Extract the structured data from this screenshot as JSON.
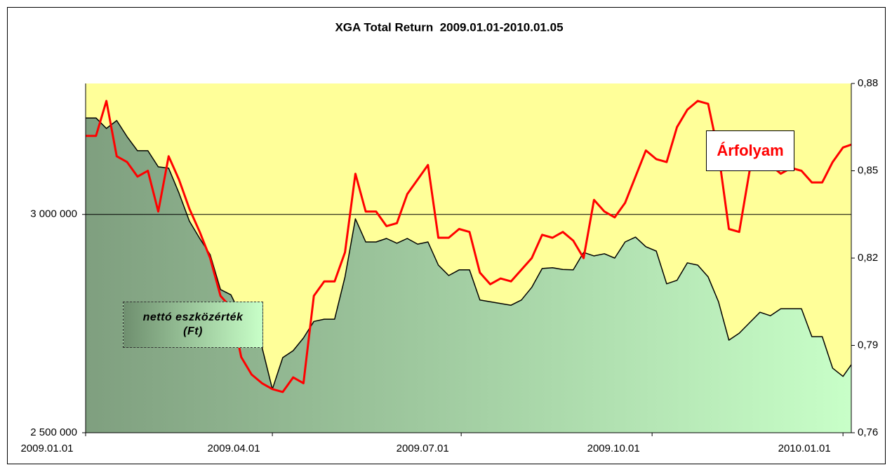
{
  "chart_data": {
    "type": "line",
    "title": "XGA Total Return  2009.01.01-2010.01.05",
    "x": [
      "2009.01.01",
      "2009.01.06",
      "2009.01.11",
      "2009.01.16",
      "2009.01.21",
      "2009.01.26",
      "2009.01.31",
      "2009.02.05",
      "2009.02.10",
      "2009.02.15",
      "2009.02.20",
      "2009.02.25",
      "2009.03.02",
      "2009.03.07",
      "2009.03.12",
      "2009.03.17",
      "2009.03.22",
      "2009.03.27",
      "2009.04.01",
      "2009.04.06",
      "2009.04.11",
      "2009.04.16",
      "2009.04.21",
      "2009.04.26",
      "2009.05.01",
      "2009.05.06",
      "2009.05.11",
      "2009.05.16",
      "2009.05.21",
      "2009.05.26",
      "2009.05.31",
      "2009.06.05",
      "2009.06.10",
      "2009.06.15",
      "2009.06.20",
      "2009.06.25",
      "2009.06.30",
      "2009.07.05",
      "2009.07.10",
      "2009.07.15",
      "2009.07.20",
      "2009.07.25",
      "2009.07.30",
      "2009.08.04",
      "2009.08.09",
      "2009.08.14",
      "2009.08.19",
      "2009.08.24",
      "2009.08.29",
      "2009.09.03",
      "2009.09.08",
      "2009.09.13",
      "2009.09.18",
      "2009.09.23",
      "2009.09.28",
      "2009.10.03",
      "2009.10.08",
      "2009.10.13",
      "2009.10.18",
      "2009.10.23",
      "2009.10.28",
      "2009.11.02",
      "2009.11.07",
      "2009.11.12",
      "2009.11.17",
      "2009.11.22",
      "2009.11.27",
      "2009.12.02",
      "2009.12.07",
      "2009.12.12",
      "2009.12.17",
      "2009.12.22",
      "2009.12.27",
      "2010.01.01",
      "2010.01.05"
    ],
    "xlim": [
      "2009.01.01",
      "2010.01.05"
    ],
    "xticks": [
      "2009.01.01",
      "2009.04.01",
      "2009.07.01",
      "2009.10.01",
      "2010.01.01"
    ],
    "ylim": [
      2500000,
      3300000
    ],
    "yticks": [
      {
        "value": 2500000,
        "label": "2 500 000"
      },
      {
        "value": 3000000,
        "label": "3 000 000"
      }
    ],
    "y2lim": [
      0.76,
      0.88
    ],
    "y2ticks": [
      {
        "value": 0.76,
        "label": "0,76"
      },
      {
        "value": 0.79,
        "label": "0,79"
      },
      {
        "value": 0.82,
        "label": "0,82"
      },
      {
        "value": 0.85,
        "label": "0,85"
      },
      {
        "value": 0.88,
        "label": "0,88"
      }
    ],
    "grid": true,
    "series": [
      {
        "name": "nettó eszközérték (Ft)",
        "color": "#000000",
        "area": true,
        "values": [
          3221000,
          3221000,
          3197000,
          3215000,
          3178000,
          3146000,
          3146000,
          3109000,
          3106000,
          3049000,
          2985000,
          2945000,
          2908000,
          2828000,
          2816000,
          2768000,
          2760000,
          2696000,
          2600000,
          2672000,
          2688000,
          2717000,
          2755000,
          2760000,
          2760000,
          2857000,
          2990000,
          2937000,
          2937000,
          2945000,
          2934000,
          2945000,
          2932000,
          2937000,
          2884000,
          2860000,
          2873000,
          2873000,
          2804000,
          2800000,
          2796000,
          2792000,
          2804000,
          2833000,
          2876000,
          2878000,
          2874000,
          2873000,
          2913000,
          2905000,
          2910000,
          2900000,
          2937000,
          2948000,
          2926000,
          2916000,
          2841000,
          2849000,
          2889000,
          2884000,
          2857000,
          2800000,
          2712000,
          2728000,
          2752000,
          2776000,
          2768000,
          2784000,
          2784000,
          2784000,
          2720000,
          2720000,
          2648000,
          2629000,
          2656000
        ]
      },
      {
        "name": "Árfolyam",
        "color": "#ff0000",
        "axis": "y2",
        "values": [
          0.862,
          0.862,
          0.874,
          0.855,
          0.853,
          0.848,
          0.85,
          0.836,
          0.855,
          0.847,
          0.837,
          0.829,
          0.82,
          0.807,
          0.803,
          0.786,
          0.78,
          0.777,
          0.775,
          0.774,
          0.779,
          0.777,
          0.807,
          0.812,
          0.812,
          0.822,
          0.849,
          0.836,
          0.836,
          0.831,
          0.832,
          0.842,
          0.847,
          0.852,
          0.827,
          0.827,
          0.83,
          0.829,
          0.815,
          0.811,
          0.813,
          0.812,
          0.816,
          0.82,
          0.828,
          0.827,
          0.829,
          0.826,
          0.82,
          0.84,
          0.836,
          0.834,
          0.839,
          0.848,
          0.857,
          0.854,
          0.853,
          0.865,
          0.871,
          0.874,
          0.873,
          0.856,
          0.83,
          0.829,
          0.85,
          0.853,
          0.852,
          0.849,
          0.851,
          0.85,
          0.846,
          0.846,
          0.853,
          0.858,
          0.859
        ]
      }
    ]
  }
}
